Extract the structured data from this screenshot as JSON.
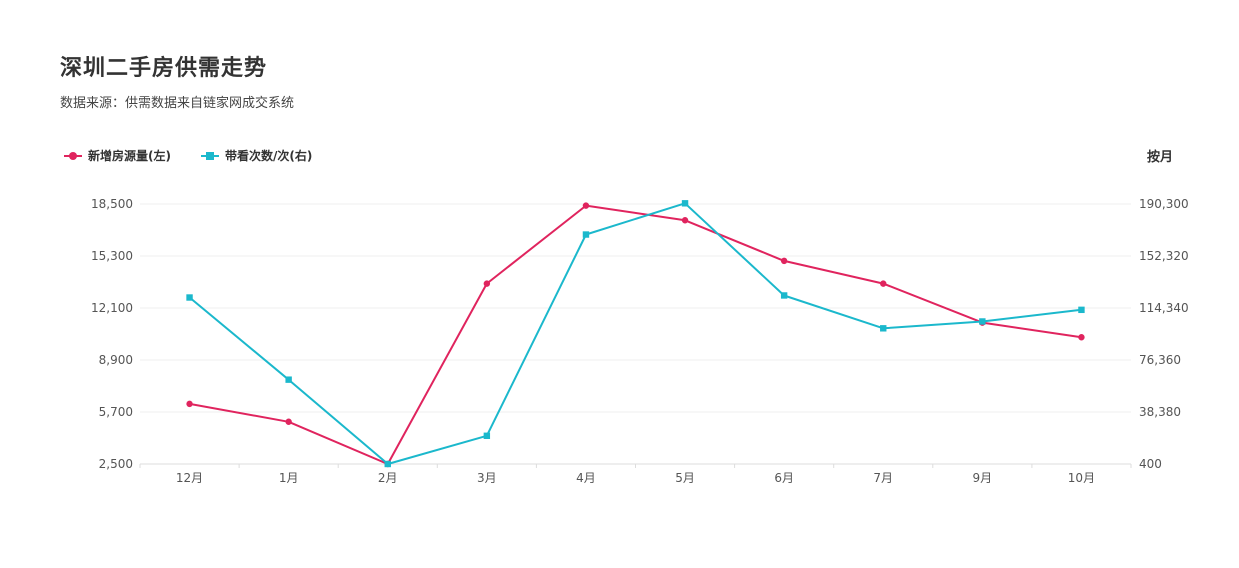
{
  "title": "深圳二手房供需走势",
  "subtitle": "数据来源：供需数据来自链家网成交系统",
  "period_label": "按月",
  "colors": {
    "series1": "#e0245e",
    "series2": "#1bb8cc"
  },
  "chart_data": {
    "type": "line",
    "title": "深圳二手房供需走势",
    "categories": [
      "12月",
      "1月",
      "2月",
      "3月",
      "4月",
      "5月",
      "6月",
      "7月",
      "9月",
      "10月"
    ],
    "series": [
      {
        "name": "新增房源量(左)",
        "axis": "left",
        "marker": "circle",
        "values": [
          6200,
          5100,
          2500,
          13600,
          18400,
          17500,
          15000,
          13600,
          11200,
          10300
        ]
      },
      {
        "name": "带看次数/次(右)",
        "axis": "right",
        "marker": "square",
        "values": [
          122000,
          62000,
          400,
          21000,
          168000,
          190800,
          123500,
          99500,
          104500,
          113000
        ]
      }
    ],
    "left_axis": {
      "ticks": [
        "18,500",
        "15,300",
        "12,100",
        "8,900",
        "5,700",
        "2,500"
      ],
      "ylim": [
        2500,
        18500
      ]
    },
    "right_axis": {
      "ticks": [
        "190,300",
        "152,320",
        "114,340",
        "76,360",
        "38,380",
        "400"
      ],
      "ylim": [
        400,
        190300
      ]
    },
    "grid": true,
    "legend_position": "top-left"
  }
}
